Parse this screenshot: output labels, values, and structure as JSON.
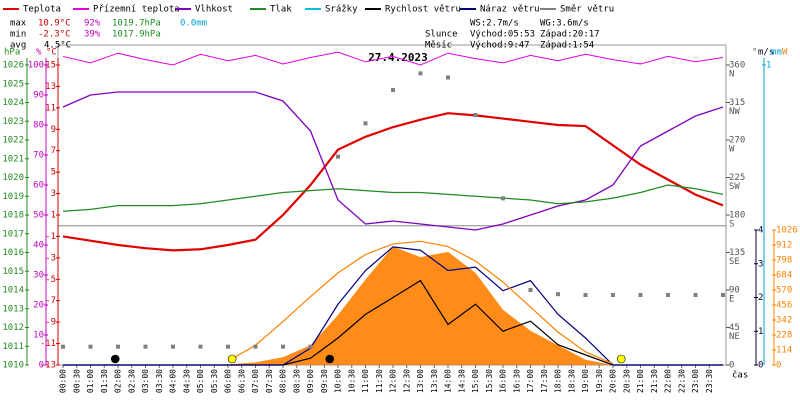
{
  "chart_data": {
    "type": "line",
    "title": "27.4.2023",
    "x_label": "čas",
    "xlim": [
      0,
      24
    ],
    "xticks": [
      {
        "value": 0,
        "label": "00:00"
      },
      {
        "value": 0.5,
        "label": "00:30"
      },
      {
        "value": 1,
        "label": "01:00"
      },
      {
        "value": 1.5,
        "label": "01:30"
      },
      {
        "value": 2,
        "label": "02:00"
      },
      {
        "value": 2.5,
        "label": "02:30"
      },
      {
        "value": 3,
        "label": "03:00"
      },
      {
        "value": 3.5,
        "label": "03:30"
      },
      {
        "value": 4,
        "label": "04:00"
      },
      {
        "value": 4.5,
        "label": "04:30"
      },
      {
        "value": 5,
        "label": "05:00"
      },
      {
        "value": 5.5,
        "label": "05:30"
      },
      {
        "value": 6,
        "label": "06:00"
      },
      {
        "value": 6.5,
        "label": "06:30"
      },
      {
        "value": 7,
        "label": "07:00"
      },
      {
        "value": 7.5,
        "label": "07:30"
      },
      {
        "value": 8,
        "label": "08:00"
      },
      {
        "value": 8.5,
        "label": "08:30"
      },
      {
        "value": 9,
        "label": "09:00"
      },
      {
        "value": 9.5,
        "label": "09:30"
      },
      {
        "value": 10,
        "label": "10:00"
      },
      {
        "value": 10.5,
        "label": "10:30"
      },
      {
        "value": 11,
        "label": "11:00"
      },
      {
        "value": 11.5,
        "label": "11:30"
      },
      {
        "value": 12,
        "label": "12:00"
      },
      {
        "value": 12.5,
        "label": "12:30"
      },
      {
        "value": 13,
        "label": "13:00"
      },
      {
        "value": 13.5,
        "label": "13:30"
      },
      {
        "value": 14,
        "label": "14:00"
      },
      {
        "value": 14.5,
        "label": "14:30"
      },
      {
        "value": 15,
        "label": "15:00"
      },
      {
        "value": 15.5,
        "label": "15:30"
      },
      {
        "value": 16,
        "label": "16:00"
      },
      {
        "value": 16.5,
        "label": "16:30"
      },
      {
        "value": 17,
        "label": "17:00"
      },
      {
        "value": 17.5,
        "label": "17:30"
      },
      {
        "value": 18,
        "label": "18:00"
      },
      {
        "value": 18.5,
        "label": "18:30"
      },
      {
        "value": 19,
        "label": "19:00"
      },
      {
        "value": 19.5,
        "label": "19:30"
      },
      {
        "value": 20,
        "label": "20:00"
      },
      {
        "value": 20.5,
        "label": "20:30"
      },
      {
        "value": 21,
        "label": "21:00"
      },
      {
        "value": 21.5,
        "label": "21:30"
      },
      {
        "value": 22,
        "label": "22:00"
      },
      {
        "value": 22.5,
        "label": "22:30"
      },
      {
        "value": 23,
        "label": "23:00"
      },
      {
        "value": 23.5,
        "label": "23:30"
      }
    ],
    "x": [
      0,
      1,
      2,
      3,
      4,
      5,
      6,
      7,
      8,
      9,
      10,
      11,
      12,
      13,
      14,
      15,
      16,
      17,
      18,
      19,
      20,
      21,
      22,
      23,
      24
    ],
    "axes": {
      "pressure": {
        "unit": "hPa",
        "color": "#228b22",
        "lim": [
          1010,
          1026
        ],
        "ticks": [
          1026,
          1025,
          1024,
          1023,
          1022,
          1021,
          1020,
          1019,
          1018,
          1017,
          1016,
          1015,
          1014,
          1013,
          1012,
          1011,
          1010
        ]
      },
      "humidity": {
        "unit": "%",
        "color": "#c000c0",
        "lim": [
          0,
          100
        ],
        "ticks": [
          100,
          90,
          80,
          70,
          60,
          50,
          40,
          30,
          20,
          10,
          0
        ]
      },
      "temp": {
        "unit": "°C",
        "color": "#d00000",
        "lim": [
          -13,
          15
        ],
        "ticks": [
          15,
          13,
          11,
          9,
          7,
          5,
          3,
          1,
          -1,
          -3,
          -5,
          -7,
          -9,
          -11,
          -13
        ]
      },
      "direction": {
        "unit": "°",
        "color": "#555555",
        "lim": [
          0,
          360
        ],
        "ticks": [
          360,
          315,
          270,
          225,
          180,
          135,
          90,
          45,
          0
        ],
        "compass": [
          "N",
          "NW",
          "W",
          "SW",
          "S",
          "SE",
          "E",
          "NE",
          null
        ]
      },
      "wind": {
        "unit": "m/s",
        "color": "#000033",
        "lim": [
          0,
          4
        ],
        "ticks": [
          4,
          3,
          2,
          1,
          0
        ]
      },
      "rain": {
        "unit": "mm",
        "color": "#00a0d0",
        "lim": [
          0,
          1
        ],
        "ticks": [
          1
        ]
      },
      "radiation": {
        "unit": "W",
        "color": "#ff8000",
        "lim": [
          0,
          1026
        ],
        "ticks": [
          1026,
          912,
          798,
          684,
          570,
          456,
          342,
          228,
          114,
          0
        ]
      }
    },
    "series": [
      {
        "name": "Teplota",
        "color": "#e00000",
        "axis": "temp",
        "style": "line",
        "width": 2.2,
        "values": [
          -1.0,
          -1.4,
          -1.8,
          -2.1,
          -2.3,
          -2.2,
          -1.8,
          -1.3,
          1.0,
          3.8,
          7.1,
          8.3,
          9.2,
          9.9,
          10.5,
          10.3,
          10.0,
          9.7,
          9.4,
          9.3,
          7.5,
          5.7,
          4.3,
          2.9,
          1.9
        ]
      },
      {
        "name": "Přízemní teplota",
        "color": "#e000e0",
        "axis": "temp",
        "style": "line",
        "width": 1,
        "values": [
          15.8,
          15.2,
          16.1,
          15.5,
          15.0,
          16.0,
          15.4,
          15.9,
          15.1,
          15.7,
          16.2,
          15.3,
          15.8,
          15.0,
          16.1,
          15.6,
          15.2,
          15.9,
          15.4,
          16.0,
          15.5,
          15.1,
          15.8,
          15.3,
          15.7
        ]
      },
      {
        "name": "Vlhkost",
        "color": "#8000c0",
        "axis": "humidity",
        "style": "line",
        "width": 1.3,
        "values": [
          86,
          90,
          91,
          91,
          91,
          91,
          91,
          91,
          88,
          78,
          55,
          47,
          48,
          47,
          46,
          45,
          47,
          50,
          53,
          55,
          60,
          73,
          78,
          83,
          86
        ]
      },
      {
        "name": "Tlak",
        "color": "#228b22",
        "axis": "pressure",
        "style": "line",
        "width": 1.3,
        "values": [
          1018.2,
          1018.3,
          1018.5,
          1018.5,
          1018.5,
          1018.6,
          1018.8,
          1019.0,
          1019.2,
          1019.3,
          1019.4,
          1019.3,
          1019.2,
          1019.2,
          1019.1,
          1019.0,
          1018.9,
          1018.8,
          1018.6,
          1018.7,
          1018.9,
          1019.2,
          1019.6,
          1019.4,
          1019.1
        ]
      },
      {
        "name": "Srážky",
        "color": "#00c0e0",
        "axis": "rain",
        "style": "bar",
        "values": [
          0,
          0,
          0,
          0,
          0,
          0,
          0,
          0,
          0,
          0,
          0,
          0,
          0,
          0,
          0,
          0,
          0,
          0,
          0,
          0,
          0,
          0,
          0,
          0,
          0
        ]
      },
      {
        "name": "Rychlost větru",
        "color": "#000000",
        "axis": "wind",
        "style": "line",
        "width": 1.2,
        "values": [
          0,
          0,
          0,
          0,
          0,
          0,
          0,
          0,
          0,
          0.2,
          0.8,
          1.5,
          2.0,
          2.5,
          1.2,
          1.8,
          1.0,
          1.3,
          0.6,
          0.3,
          0,
          0,
          0,
          0,
          0
        ]
      },
      {
        "name": "Náraz větru",
        "color": "#000080",
        "axis": "wind",
        "style": "line",
        "width": 1.2,
        "values": [
          0,
          0,
          0,
          0,
          0,
          0,
          0,
          0,
          0,
          0.5,
          1.8,
          2.8,
          3.5,
          3.4,
          2.8,
          2.9,
          2.2,
          2.5,
          1.5,
          0.8,
          0,
          0,
          0,
          0,
          0
        ]
      },
      {
        "name": "Směr větru",
        "color": "#808080",
        "axis": "direction",
        "style": "scatter",
        "values": [
          22,
          22,
          22,
          22,
          22,
          22,
          22,
          22,
          22,
          22,
          250,
          290,
          330,
          350,
          345,
          300,
          200,
          90,
          85,
          84,
          84,
          84,
          84,
          84,
          84
        ]
      },
      {
        "color": "#ff8000",
        "axis": "radiation",
        "style": "area",
        "values": [
          0,
          0,
          0,
          0,
          0,
          0,
          5,
          20,
          60,
          150,
          380,
          650,
          900,
          820,
          860,
          700,
          420,
          260,
          150,
          40,
          0,
          0,
          0,
          0,
          0
        ]
      },
      {
        "color": "#ff8000",
        "axis": "radiation",
        "style": "line",
        "width": 1.2,
        "values": [
          null,
          null,
          null,
          null,
          null,
          null,
          30,
          150,
          330,
          520,
          700,
          840,
          920,
          940,
          900,
          790,
          630,
          440,
          250,
          100,
          10,
          null,
          null,
          null,
          null
        ]
      }
    ],
    "markers": [
      {
        "x": 1.9,
        "color": "#000000"
      },
      {
        "x": 6.15,
        "color": "#ffff00"
      },
      {
        "x": 9.7,
        "color": "#000000"
      },
      {
        "x": 20.3,
        "color": "#ffff00"
      }
    ],
    "stats": {
      "max": {
        "label": "max",
        "temp": "10.9°C",
        "humidity": "92%",
        "pressure": "1019.7hPa",
        "rain": "0.0mm"
      },
      "min": {
        "label": "min",
        "temp": "-2.3°C",
        "humidity": "39%",
        "pressure": "1017.9hPa"
      },
      "avg": {
        "label": "avg",
        "temp": "4.5°C"
      },
      "ws": "WS:2.7m/s",
      "wg": "WG:3.6m/s",
      "sun": {
        "label": "Slunce",
        "rise": "Východ:05:53",
        "set": "Západ:20:17"
      },
      "moon": {
        "label": "Měsíc",
        "rise": "Východ:9:47",
        "set": "Západ:1:54"
      }
    }
  }
}
